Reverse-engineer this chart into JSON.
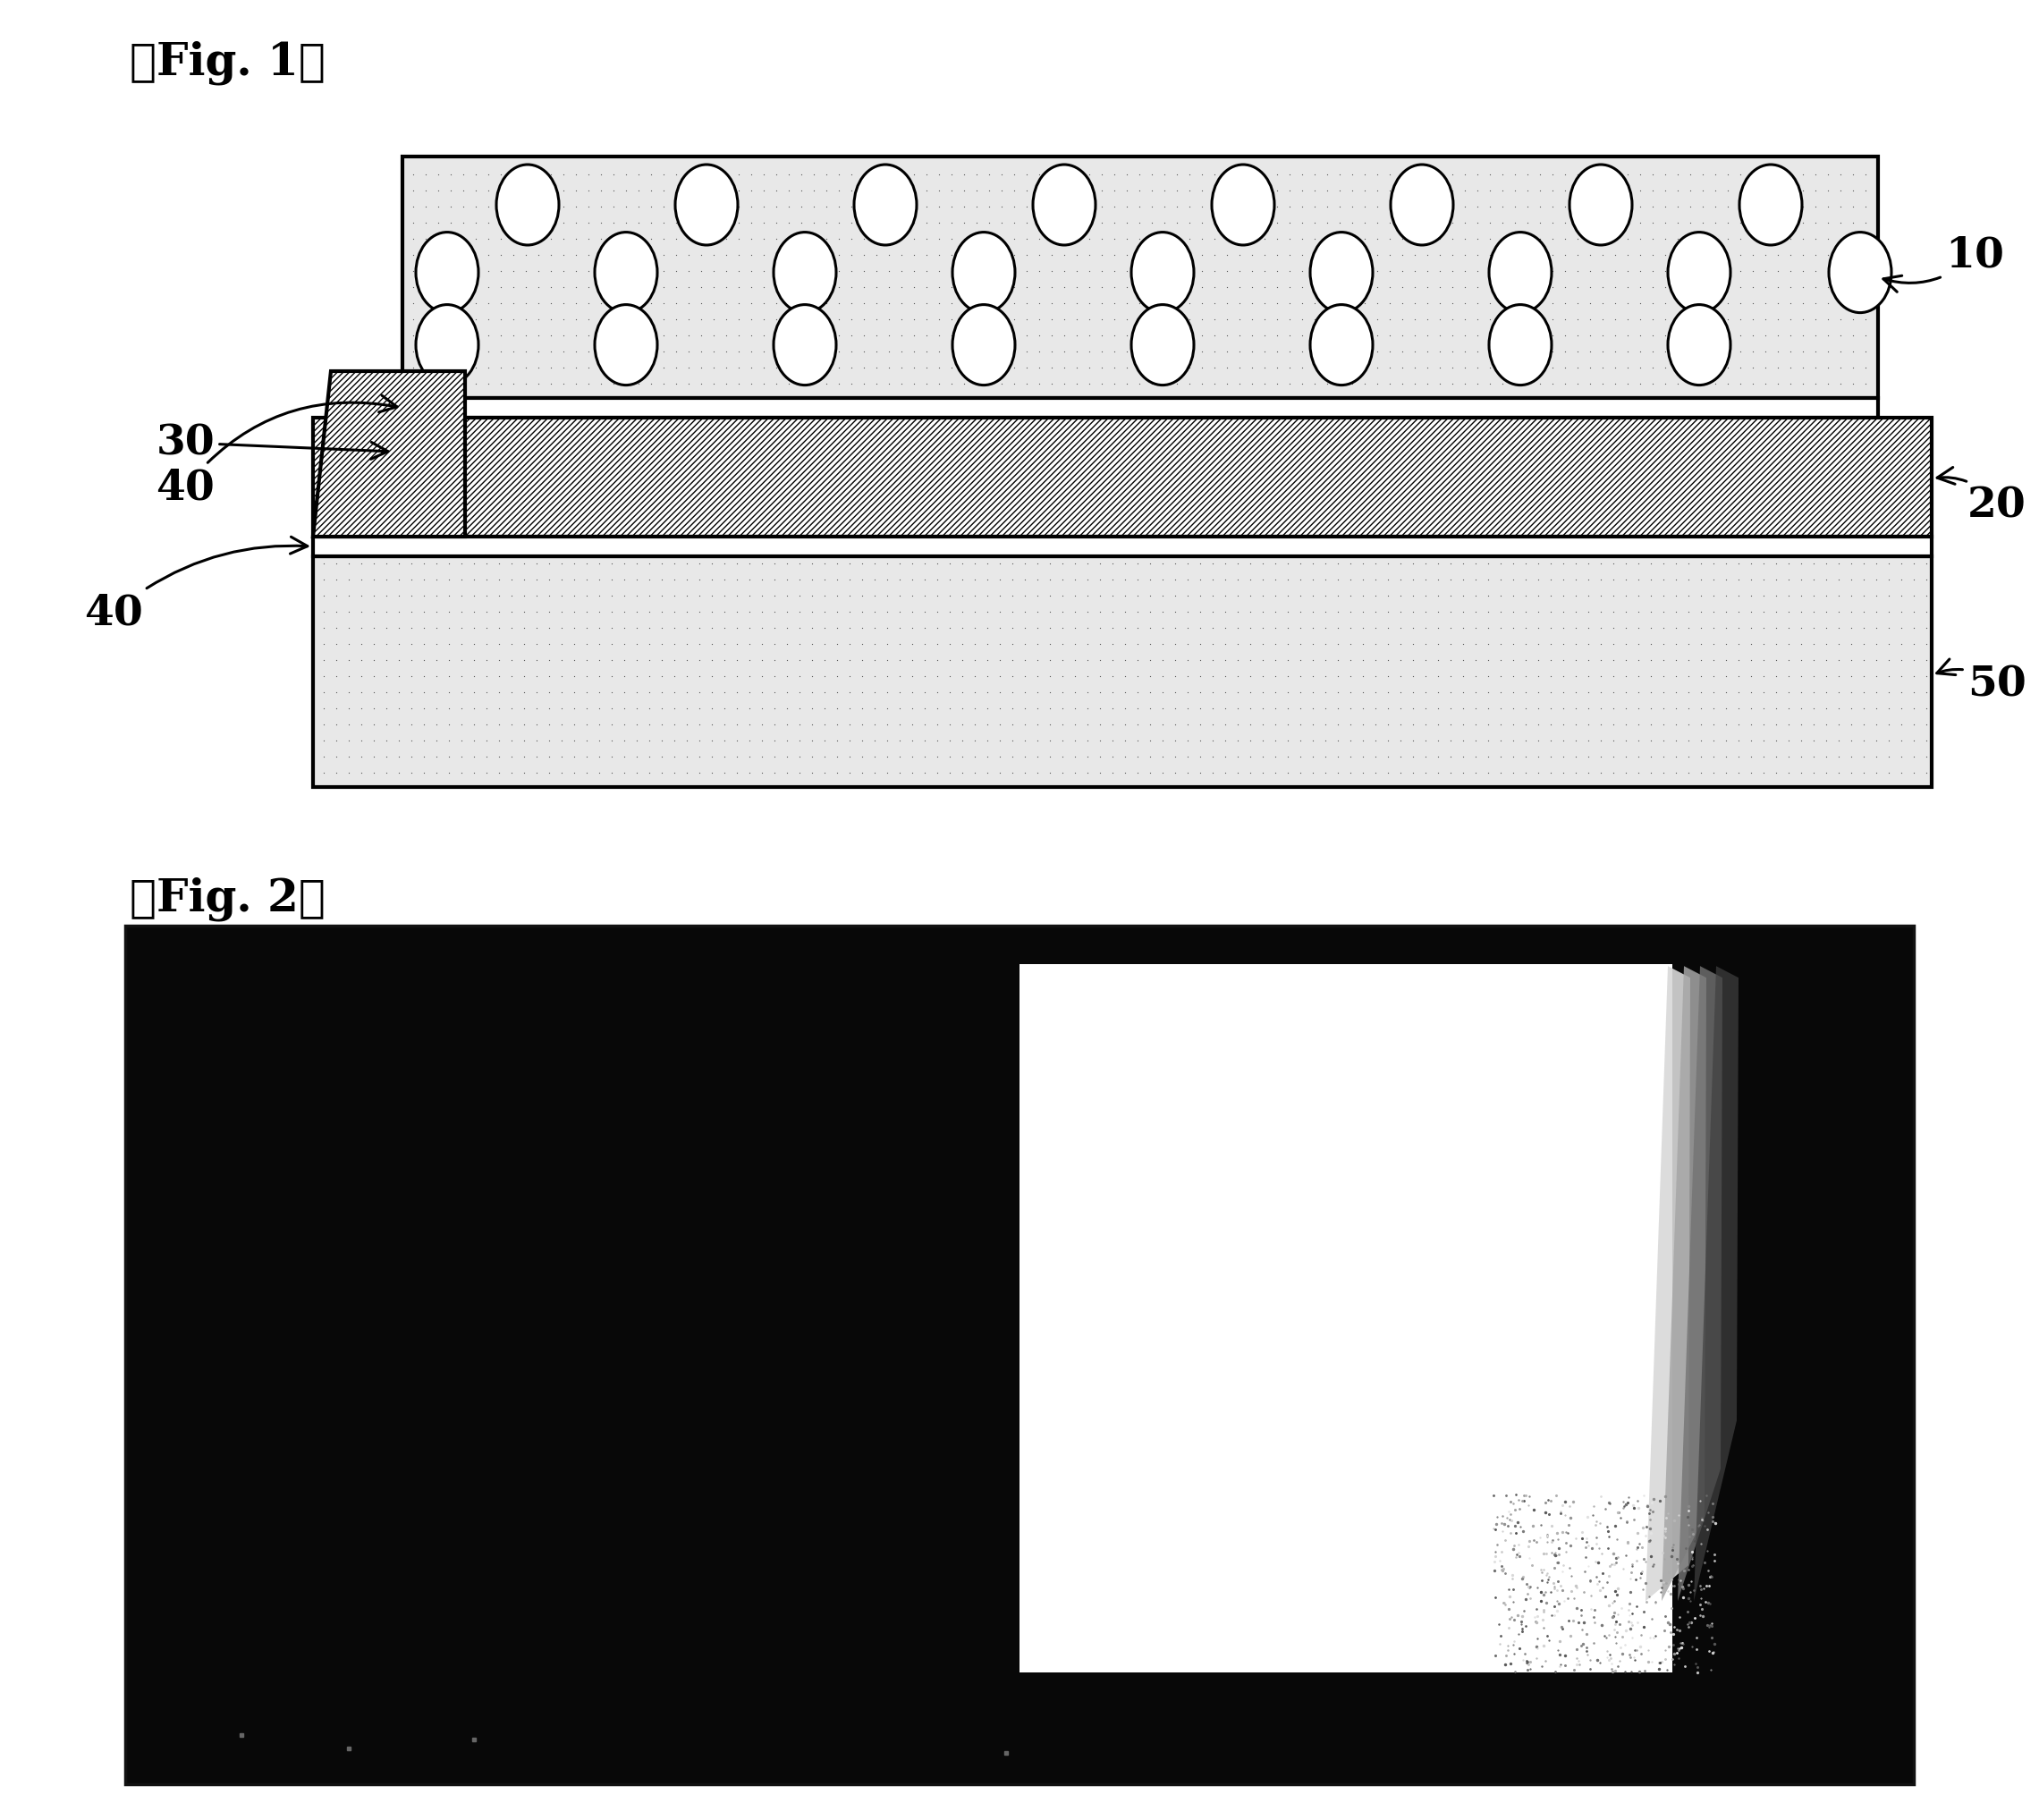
{
  "fig1_label": "『Fig. 1』",
  "fig2_label": "『Fig. 2』",
  "bg_color": "#ffffff",
  "label_10": "10",
  "label_20": "20",
  "label_30": "30",
  "label_40": "40",
  "label_50": "50"
}
